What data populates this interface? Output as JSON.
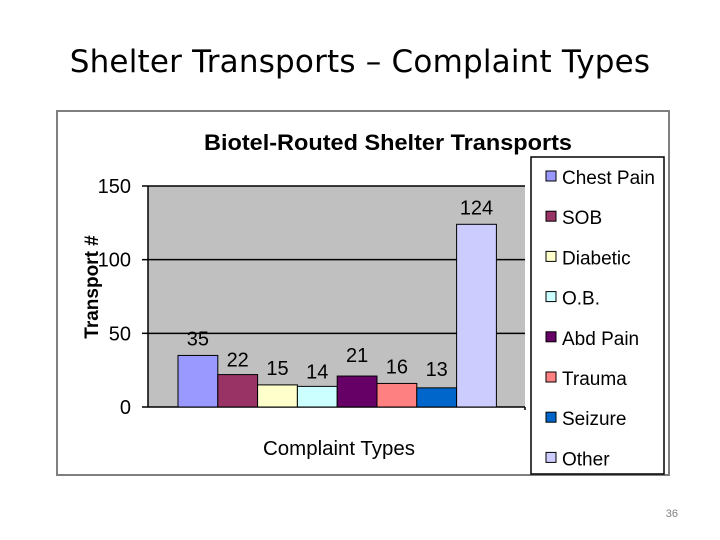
{
  "slide": {
    "title": "Shelter Transports – Complaint Types",
    "page_number": "36"
  },
  "chart_data": {
    "type": "bar",
    "title": "Biotel-Routed Shelter Transports",
    "xlabel": "Complaint Types",
    "ylabel": "Transport #",
    "ylim": [
      0,
      150
    ],
    "yticks": [
      "0",
      "50",
      "100",
      "150"
    ],
    "grid": true,
    "legend_position": "right",
    "categories": [
      "Chest Pain",
      "SOB",
      "Diabetic",
      "O.B.",
      "Abd Pain",
      "Trauma",
      "Seizure",
      "Other"
    ],
    "values": [
      35,
      22,
      15,
      14,
      21,
      16,
      13,
      124
    ],
    "colors": [
      "#9999ff",
      "#993366",
      "#ffffcc",
      "#ccffff",
      "#660066",
      "#ff8080",
      "#0066cc",
      "#ccccff"
    ],
    "plot_background": "#c0c0c0"
  }
}
